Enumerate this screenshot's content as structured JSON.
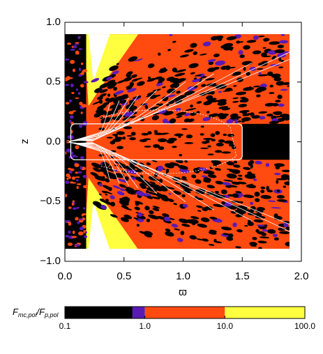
{
  "chart_data": {
    "type": "heatmap",
    "x_label": "ϖ",
    "y_label": "z",
    "xlim": [
      0.0,
      2.0
    ],
    "ylim": [
      -1.0,
      1.0
    ],
    "xticks": [
      {
        "value": 0,
        "label": "0.0"
      },
      0.5,
      {
        "value": 1,
        "label": "1.0"
      },
      1.5,
      {
        "value": 2,
        "label": "2.0"
      }
    ],
    "yticks": [
      {
        "value": -1,
        "label": "−1.0"
      },
      {
        "value": -0.5,
        "label": "−0.5"
      },
      {
        "value": 0,
        "label": "0.0"
      },
      0.5,
      {
        "value": 1,
        "label": "1.0"
      }
    ],
    "colorbar": {
      "label_parts": [
        "F",
        "mc,pol",
        "/F",
        "p,pol"
      ],
      "log": true,
      "lim": [
        0.1,
        100
      ],
      "bounds": [
        0.1,
        0.7,
        1,
        10,
        100
      ],
      "colors": [
        "#000000",
        "#5a1ab4",
        "#ff4a10",
        "#ffff40"
      ],
      "ticks": [
        0.1,
        {
          "value": 1,
          "label": "1.0"
        },
        {
          "value": 10,
          "label": "10.0"
        },
        {
          "value": 100,
          "label": "100.0"
        }
      ]
    }
  }
}
